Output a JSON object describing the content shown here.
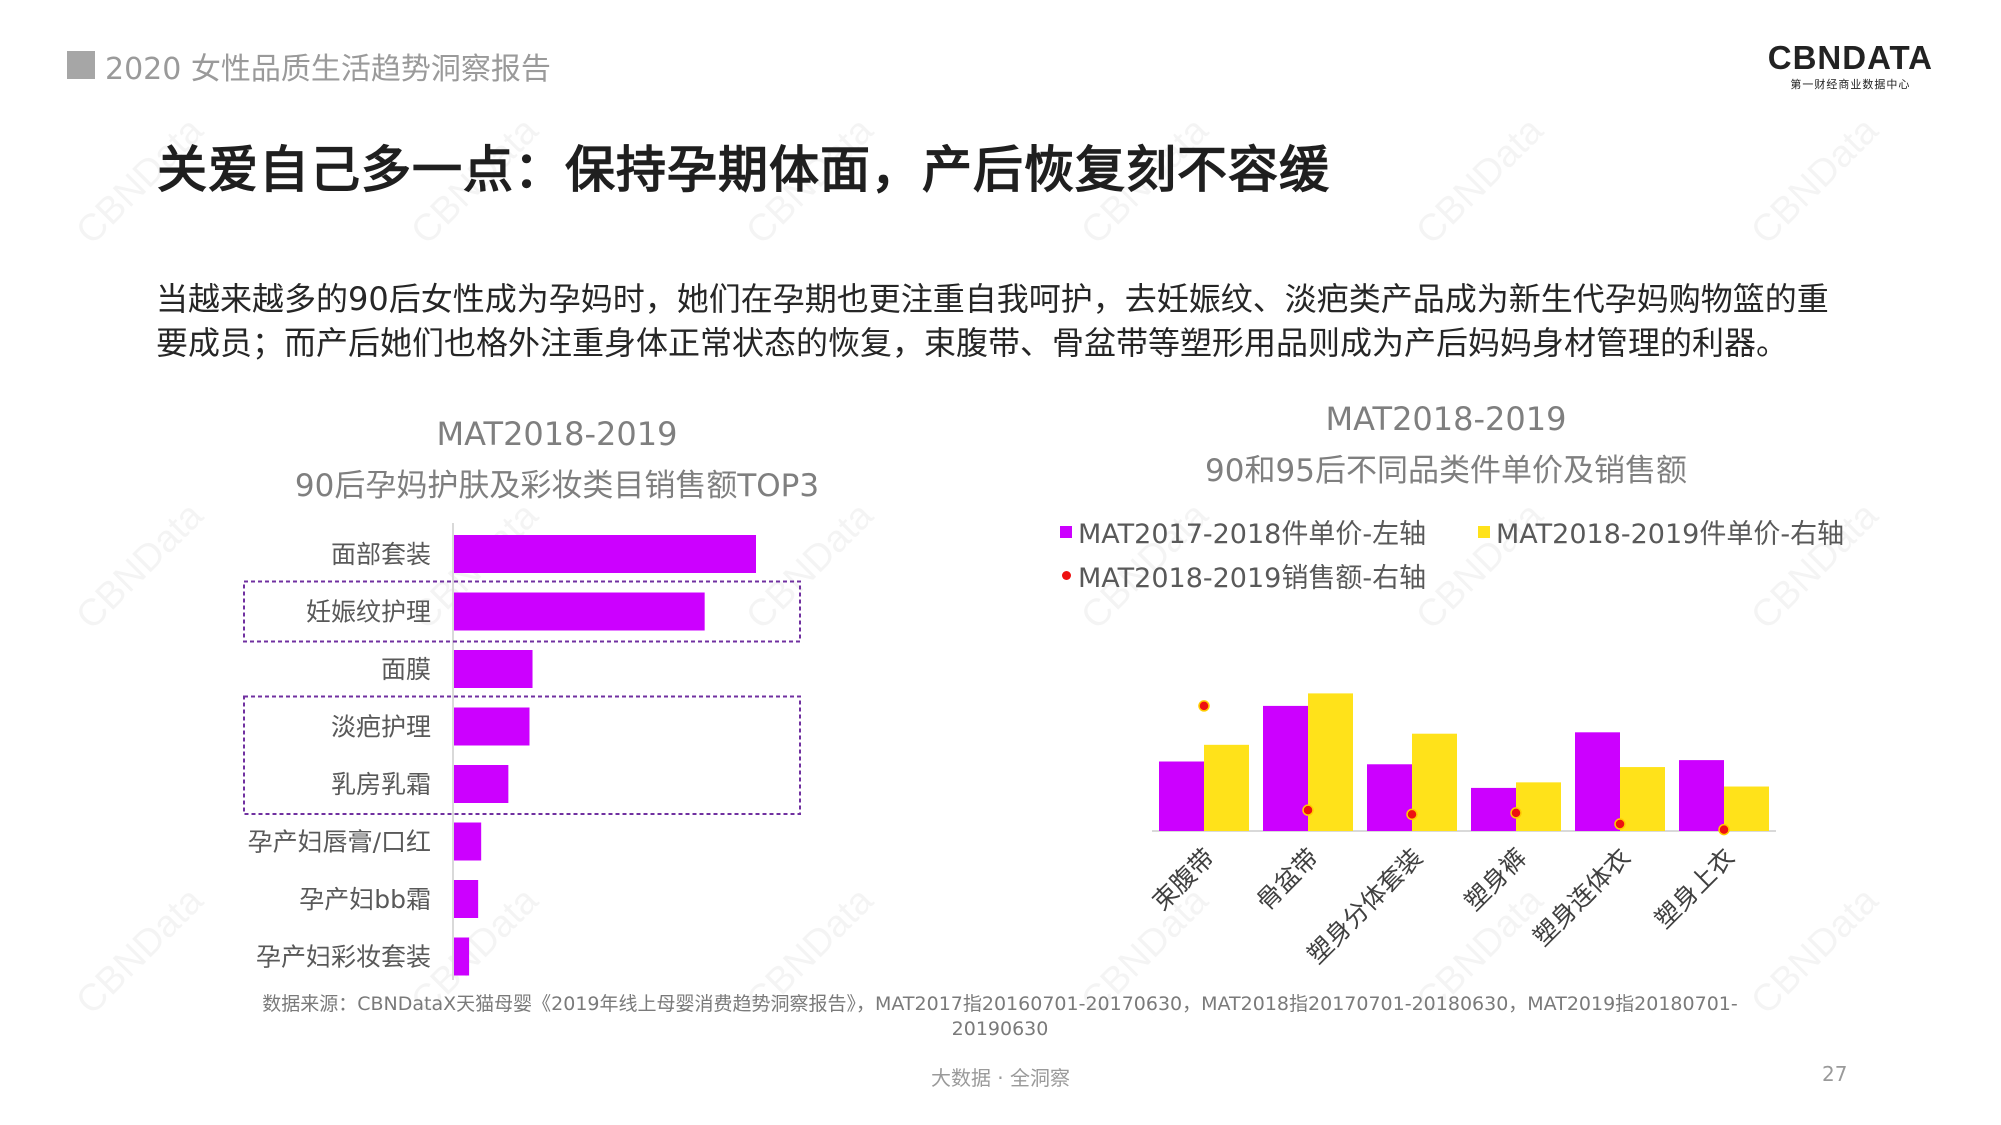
{
  "header": {
    "report_title": "2020 女性品质生活趋势洞察报告",
    "logo_text": "CBNDATA",
    "logo_subtitle": "第一财经商业数据中心"
  },
  "slide": {
    "title": "关爱自己多一点：保持孕期体面，产后恢复刻不容缓",
    "intro": "当越来越多的90后女性成为孕妈时，她们在孕期也更注重自我呵护，去妊娠纹、淡疤类产品成为新生代孕妈购物篮的重要成员；而产后她们也格外注重身体正常状态的恢复，束腹带、骨盆带等塑形用品则成为产后妈妈身材管理的利器。"
  },
  "watermark_text": "CBNData",
  "chart_data": [
    {
      "type": "bar",
      "orientation": "horizontal",
      "title_line1": "MAT2018-2019",
      "title_line2": "90后孕妈护肤及彩妆类目销售额TOP3",
      "categories": [
        "面部套装",
        "妊娠纹护理",
        "面膜",
        "淡疤护理",
        "乳房乳霜",
        "孕产妇唇膏/口红",
        "孕产妇bb霜",
        "孕产妇彩妆套装"
      ],
      "values": [
        100,
        83,
        26,
        25,
        18,
        9,
        8,
        5
      ],
      "value_unit": "relative index (no axis scale shown)",
      "bar_color": "#cc00ff",
      "highlighted_categories": [
        "妊娠纹护理",
        "淡疤护理",
        "乳房乳霜"
      ],
      "highlight_style": "purple dashed box"
    },
    {
      "type": "bar",
      "title_line1": "MAT2018-2019",
      "title_line2": "90和95后不同品类件单价及销售额",
      "categories": [
        "束腹带",
        "骨盆带",
        "塑身分体套装",
        "塑身裤",
        "塑身连体衣",
        "塑身上衣"
      ],
      "value_unit": "relative index (no axis scale shown)",
      "series": [
        {
          "name": "MAT2017-2018件单价-左轴",
          "type": "bar",
          "color": "#cc00ff",
          "values": [
            50,
            90,
            48,
            31,
            71,
            51
          ]
        },
        {
          "name": "MAT2018-2019件单价-右轴",
          "type": "bar",
          "color": "#ffe21a",
          "values": [
            62,
            99,
            70,
            35,
            46,
            32
          ]
        },
        {
          "name": "MAT2018-2019销售额-右轴",
          "type": "scatter",
          "color": "#ee1111",
          "values": [
            90,
            15,
            12,
            13,
            5,
            1
          ]
        }
      ],
      "legend_position": "top"
    }
  ],
  "source_text": "数据来源：CBNDataX天猫母婴《2019年线上母婴消费趋势洞察报告》，MAT2017指20160701-20170630，MAT2018指20170701-20180630，MAT2019指20180701-20190630",
  "footer": {
    "tagline": "大数据 · 全洞察",
    "page_number": "27"
  }
}
